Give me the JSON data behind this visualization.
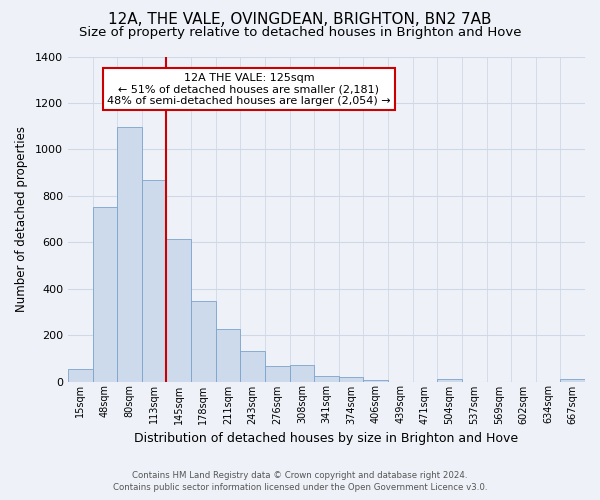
{
  "title": "12A, THE VALE, OVINGDEAN, BRIGHTON, BN2 7AB",
  "subtitle": "Size of property relative to detached houses in Brighton and Hove",
  "xlabel": "Distribution of detached houses by size in Brighton and Hove",
  "ylabel": "Number of detached properties",
  "categories": [
    "15sqm",
    "48sqm",
    "80sqm",
    "113sqm",
    "145sqm",
    "178sqm",
    "211sqm",
    "243sqm",
    "276sqm",
    "308sqm",
    "341sqm",
    "374sqm",
    "406sqm",
    "439sqm",
    "471sqm",
    "504sqm",
    "537sqm",
    "569sqm",
    "602sqm",
    "634sqm",
    "667sqm"
  ],
  "values": [
    55,
    750,
    1095,
    870,
    615,
    348,
    228,
    132,
    65,
    70,
    25,
    20,
    5,
    0,
    0,
    10,
    0,
    0,
    0,
    0,
    12
  ],
  "bar_color": "#cddaec",
  "bar_edge_color": "#7ba3cc",
  "vline_x_index": 3,
  "vline_color": "#cc0000",
  "annotation_title": "12A THE VALE: 125sqm",
  "annotation_line1": "← 51% of detached houses are smaller (2,181)",
  "annotation_line2": "48% of semi-detached houses are larger (2,054) →",
  "annotation_box_color": "#ffffff",
  "annotation_box_edge": "#cc0000",
  "ylim": [
    0,
    1400
  ],
  "yticks": [
    0,
    200,
    400,
    600,
    800,
    1000,
    1200,
    1400
  ],
  "footer_line1": "Contains HM Land Registry data © Crown copyright and database right 2024.",
  "footer_line2": "Contains public sector information licensed under the Open Government Licence v3.0.",
  "background_color": "#eef2f8",
  "grid_color": "#d0d8e8",
  "title_fontsize": 11,
  "subtitle_fontsize": 9.5,
  "title_fontweight": "normal"
}
